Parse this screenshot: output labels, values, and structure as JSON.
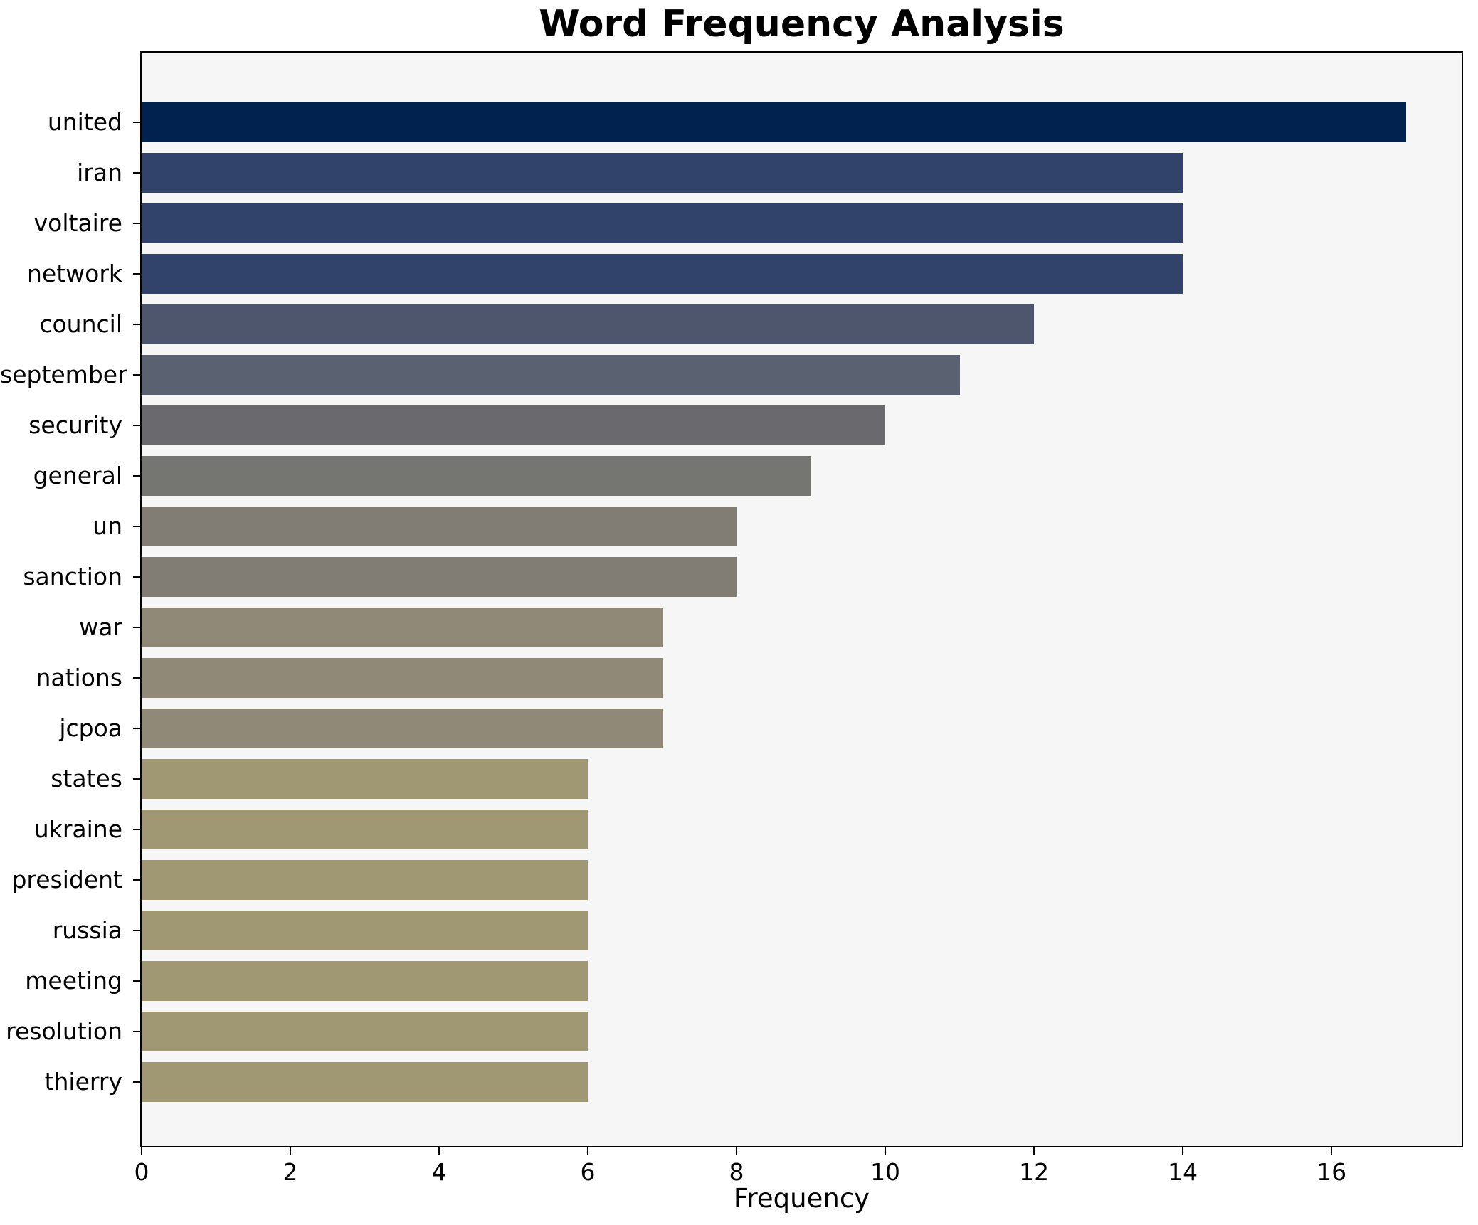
{
  "title": "Word Frequency Analysis",
  "chart_data": {
    "type": "bar",
    "orientation": "horizontal",
    "title": "Word Frequency Analysis",
    "xlabel": "Frequency",
    "ylabel": "",
    "categories": [
      "united",
      "iran",
      "voltaire",
      "network",
      "council",
      "september",
      "security",
      "general",
      "un",
      "sanction",
      "war",
      "nations",
      "jcpoa",
      "states",
      "ukraine",
      "president",
      "russia",
      "meeting",
      "resolution",
      "thierry"
    ],
    "values": [
      17,
      14,
      14,
      14,
      12,
      11,
      10,
      9,
      8,
      8,
      7,
      7,
      7,
      6,
      6,
      6,
      6,
      6,
      6,
      6
    ],
    "bar_colors": [
      "#01224e",
      "#31426b",
      "#31426b",
      "#31426b",
      "#4d566c",
      "#5a6272",
      "#69696e",
      "#757571",
      "#817d75",
      "#817d75",
      "#908978",
      "#908978",
      "#908978",
      "#a09873",
      "#a09873",
      "#a09873",
      "#a09873",
      "#a09873",
      "#a09873",
      "#a09873"
    ],
    "x_ticks": [
      0,
      2,
      4,
      6,
      8,
      10,
      12,
      14,
      16
    ],
    "xlim": [
      0,
      17.75
    ],
    "grid": false,
    "legend": null,
    "plot_background": "#f6f6f7",
    "figure_background": "#ffffff",
    "axis_color": "#000000"
  }
}
